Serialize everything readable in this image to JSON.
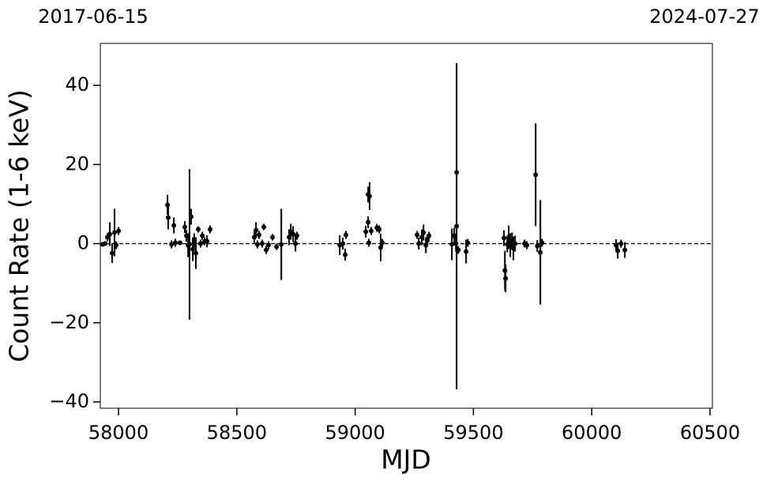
{
  "chart_data": {
    "type": "errorbar-scatter",
    "xlabel": "MJD",
    "ylabel": "Count Rate (1-6 keV)",
    "annotations": [
      "2017-06-15",
      "2024-07-27"
    ],
    "hline": 0,
    "color": "#000000",
    "xlim": [
      57923,
      60510
    ],
    "ylim": [
      -41.6,
      50.6
    ],
    "xticks": [
      58000,
      58500,
      59000,
      59500,
      60000,
      60500
    ],
    "yticks": [
      {
        "value": -40,
        "label": "−40"
      },
      {
        "value": -20,
        "label": "−20"
      },
      0,
      20,
      40
    ],
    "x": [
      57933,
      57943,
      57953,
      57963,
      57973,
      57983,
      57990,
      58000,
      58207,
      58210,
      58224,
      58234,
      58240,
      58260,
      58280,
      58287,
      58294,
      58300,
      58307,
      58314,
      58320,
      58327,
      58337,
      58347,
      58354,
      58364,
      58374,
      58387,
      58574,
      58581,
      58587,
      58594,
      58607,
      58614,
      58624,
      58634,
      58651,
      58668,
      58688,
      58721,
      58728,
      58738,
      58748,
      58754,
      58935,
      58948,
      58958,
      58961,
      59045,
      59055,
      59061,
      59055,
      59058,
      59068,
      59092,
      59102,
      59108,
      59115,
      59262,
      59269,
      59282,
      59289,
      59299,
      59305,
      59312,
      59409,
      59419,
      59426,
      59429,
      59429,
      59436,
      59469,
      59476,
      59629,
      59633,
      59636,
      59643,
      59649,
      59656,
      59663,
      59669,
      59676,
      59716,
      59726,
      59763,
      59770,
      59783,
      59790,
      60103,
      60110,
      60124,
      60140
    ],
    "values": [
      -0.2,
      0,
      1.6,
      2.4,
      -2.4,
      2.8,
      -0.4,
      3.2,
      9.8,
      6.6,
      -0.2,
      4.6,
      0.2,
      0.2,
      4.2,
      2,
      -0.4,
      -0.2,
      6.8,
      -1.4,
      0.6,
      -2.4,
      3.6,
      0,
      2,
      0.6,
      0.6,
      3.6,
      1.6,
      3.4,
      -0.2,
      2.2,
      0,
      4.2,
      -1.6,
      -0.4,
      1.6,
      -0.8,
      -0.2,
      1.6,
      3,
      2.4,
      0,
      2,
      -0.4,
      0,
      -2.8,
      2.2,
      3,
      12.4,
      12,
      5.4,
      0.2,
      3.2,
      4,
      3.6,
      -1,
      0.2,
      2.2,
      0,
      1.6,
      2.8,
      -0.4,
      0.8,
      2,
      -0.2,
      2,
      0,
      4.4,
      18,
      -1.6,
      -2,
      0.2,
      1.4,
      -6.8,
      -8.8,
      -0.2,
      1.6,
      -0.4,
      0.8,
      -1.2,
      0,
      0,
      -0.4,
      17.4,
      -0.6,
      -2.2,
      0.2,
      -0.4,
      -1.8,
      0,
      -1.6
    ],
    "errors": [
      0.5,
      0.5,
      1,
      3,
      2.5,
      6,
      1,
      1,
      2.5,
      3,
      1,
      2,
      1,
      0.5,
      1.5,
      1.5,
      3,
      19,
      2,
      3,
      2,
      4,
      0.8,
      1,
      1,
      1,
      1.5,
      1,
      1.5,
      2,
      1,
      1,
      1,
      0.8,
      1,
      1,
      0.8,
      0.8,
      9,
      2,
      2,
      2,
      2,
      1,
      2.5,
      1.5,
      1.5,
      1,
      1.5,
      2,
      3.5,
      1.5,
      1,
      1,
      1,
      1,
      3.5,
      1,
      1,
      1.5,
      2,
      2,
      2,
      1.5,
      1,
      4,
      2,
      2,
      41.2,
      0.5,
      1,
      3,
      1,
      2,
      5,
      3.5,
      2,
      3,
      3,
      2,
      3,
      2,
      1,
      1,
      13,
      1.5,
      13.2,
      1,
      1.5,
      2,
      1,
      2
    ]
  }
}
